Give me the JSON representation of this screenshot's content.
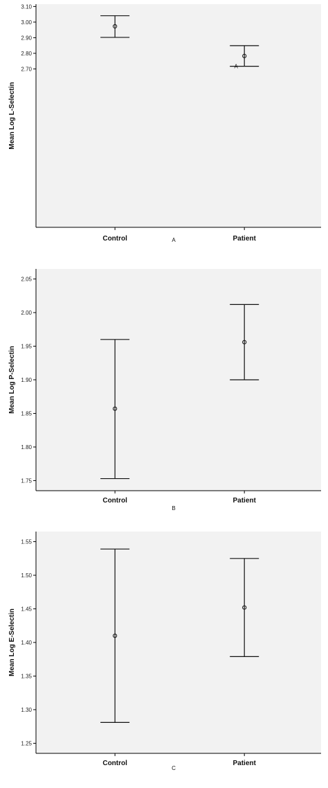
{
  "chart_data": [
    {
      "type": "errorbar",
      "panel_label": "A",
      "ylabel": "Mean Log L-Selectin",
      "categories": [
        "Control",
        "Patient"
      ],
      "ylim": [
        1.685,
        3.115
      ],
      "yticks": [
        "3.10",
        "3.00",
        "2.90",
        "2.80",
        "2.70"
      ],
      "ytick_values": [
        3.1,
        3.0,
        2.9,
        2.8,
        2.7
      ],
      "ytick_overrides": {
        "2.70": "2.70"
      },
      "means": [
        2.973,
        2.783
      ],
      "lower": [
        2.902,
        2.717
      ],
      "upper": [
        3.041,
        2.849
      ],
      "annotations": [
        {
          "text": "A",
          "category": "Patient",
          "y": 2.718
        }
      ],
      "grid": false
    },
    {
      "type": "errorbar",
      "panel_label": "B",
      "ylabel": "Mean Log P-Selectin",
      "categories": [
        "Control",
        "Patient"
      ],
      "ylim": [
        1.735,
        2.065
      ],
      "yticks": [
        "2.05",
        "2.00",
        "1.95",
        "1.90",
        "1.85",
        "1.80",
        "1.75"
      ],
      "ytick_values": [
        2.05,
        2.0,
        1.95,
        1.9,
        1.85,
        1.8,
        1.75
      ],
      "means": [
        1.857,
        1.956
      ],
      "lower": [
        1.753,
        1.9
      ],
      "upper": [
        1.96,
        2.012
      ],
      "annotations": [],
      "grid": false
    },
    {
      "type": "errorbar",
      "panel_label": "C",
      "ylabel": "Mean Log E-Selectin",
      "categories": [
        "Control",
        "Patient"
      ],
      "ylim": [
        1.235,
        1.565
      ],
      "yticks": [
        "1.55",
        "1.50",
        "1.45",
        "1.40",
        "1.35",
        "1.30",
        "1.25"
      ],
      "ytick_values": [
        1.55,
        1.5,
        1.45,
        1.4,
        1.35,
        1.3,
        1.25
      ],
      "means": [
        1.41,
        1.452
      ],
      "lower": [
        1.281,
        1.379
      ],
      "upper": [
        1.539,
        1.525
      ],
      "annotations": [],
      "grid": false
    }
  ]
}
